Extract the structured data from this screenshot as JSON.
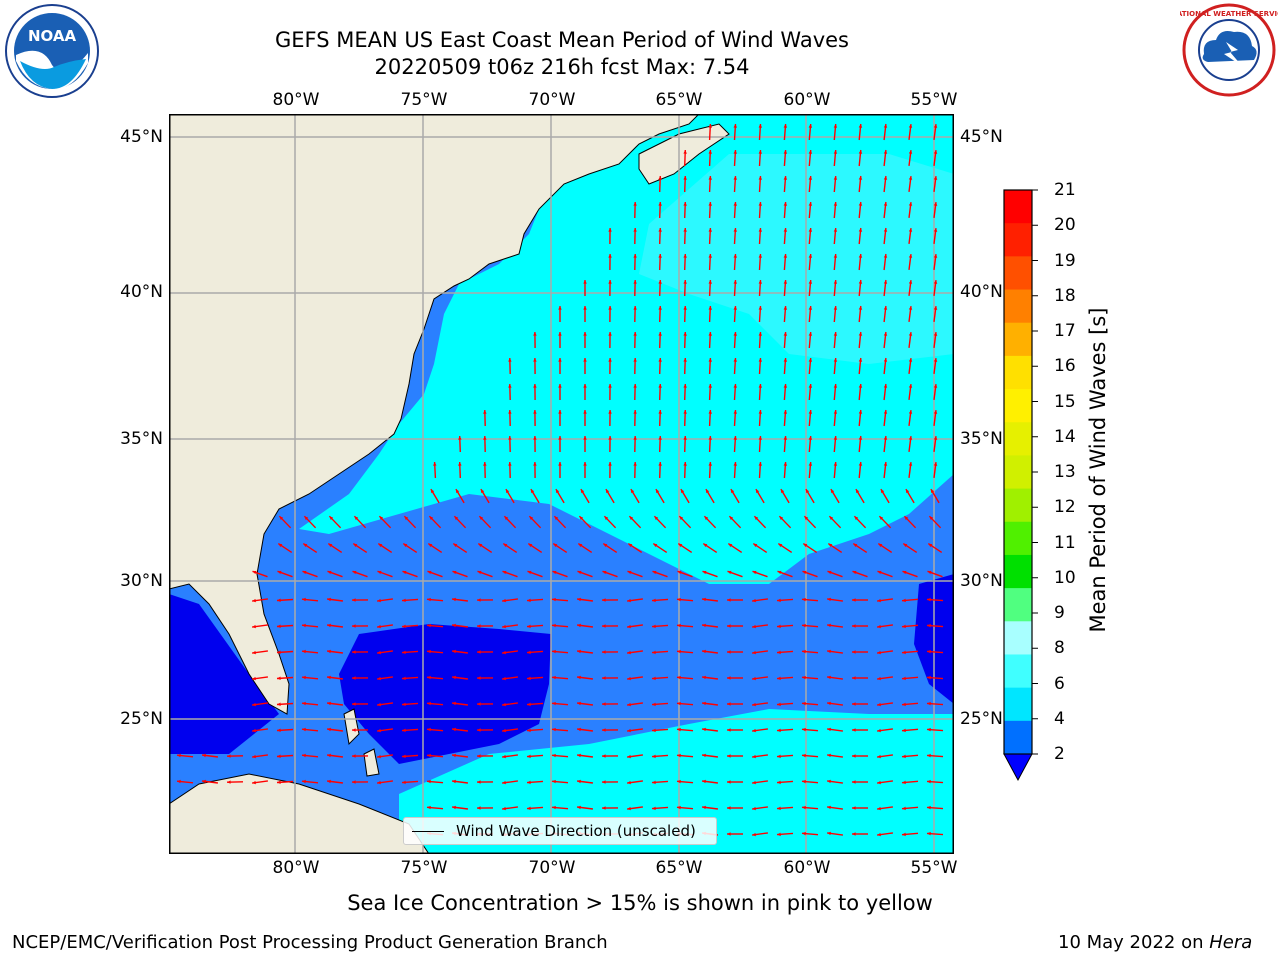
{
  "title": {
    "line1": "GEFS MEAN US East Coast Mean Period of Wind Waves",
    "line2": "20220509 t06z 216h fcst   Max: 7.54"
  },
  "map": {
    "lon_labels_top": [
      "80°W",
      "75°W",
      "70°W",
      "65°W",
      "60°W",
      "55°W"
    ],
    "lon_labels_bottom": [
      "80°W",
      "75°W",
      "70°W",
      "65°W",
      "60°W",
      "55°W"
    ],
    "lat_labels_left": [
      "45°N",
      "40°N",
      "35°N",
      "30°N",
      "25°N"
    ],
    "lat_labels_right": [
      "45°N",
      "40°N",
      "35°N",
      "30°N",
      "25°N"
    ],
    "legend_label": "Wind Wave Direction (unscaled)"
  },
  "colorbar": {
    "label": "Mean Period of Wind Waves [s]",
    "levels": [
      "2",
      "4",
      "6",
      "8",
      "9",
      "10",
      "11",
      "12",
      "13",
      "14",
      "15",
      "16",
      "17",
      "18",
      "19",
      "20",
      "21"
    ],
    "colors": [
      "#0070ff",
      "#00e6ff",
      "#40ffff",
      "#a8ffff",
      "#50ff80",
      "#00e000",
      "#50f000",
      "#a0f000",
      "#d0f000",
      "#e6f000",
      "#fff000",
      "#ffe000",
      "#ffb000",
      "#ff8000",
      "#ff5000",
      "#ff2000",
      "#ff0000"
    ],
    "under_color": "#0000ff"
  },
  "colors": {
    "land": "#efecdc",
    "ocean_low": "#0000ee",
    "ocean_mid": "#2a80ff",
    "ocean_high": "#00ffff",
    "ocean_veryhigh": "#4af5ff",
    "arrow": "#ff0000",
    "grid": "#aaaaaa"
  },
  "caption": "Sea Ice Concentration > 15% is shown in pink to yellow",
  "footer": {
    "left": "NCEP/EMC/Verification Post Processing Product Generation Branch",
    "date": "10 May 2022 on",
    "machine": "Hera"
  },
  "logos": {
    "noaa": "NOAA",
    "nws": "NATIONAL WEATHER SERVICE"
  }
}
